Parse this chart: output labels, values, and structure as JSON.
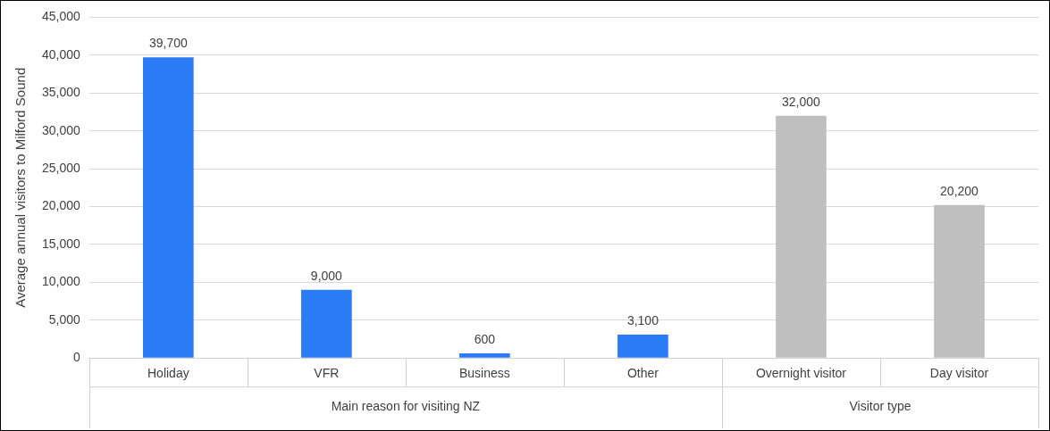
{
  "chart_data": {
    "type": "bar",
    "ylabel": "Average annual visitors to Milford Sound",
    "categories": [
      "Holiday",
      "VFR",
      "Business",
      "Other",
      "Overnight visitor",
      "Day visitor"
    ],
    "series": [
      {
        "color": "#2b7bf7",
        "values": [
          39700,
          9000,
          600,
          3100,
          null,
          null
        ],
        "value_labels": [
          "39,700",
          "9,000",
          "600",
          "3,100",
          null,
          null
        ]
      },
      {
        "color": "#bfbfbf",
        "values": [
          null,
          null,
          null,
          null,
          32000,
          20200
        ],
        "value_labels": [
          null,
          null,
          null,
          null,
          "32,000",
          "20,200"
        ]
      }
    ],
    "ylim": [
      0,
      45000
    ],
    "yticks": [
      0,
      {
        "value": 5000,
        "label": "5,000"
      },
      {
        "value": 10000,
        "label": "10,000"
      },
      {
        "value": 15000,
        "label": "15,000"
      },
      {
        "value": 20000,
        "label": "20,000"
      },
      {
        "value": 25000,
        "label": "25,000"
      },
      {
        "value": 30000,
        "label": "30,000"
      },
      {
        "value": 35000,
        "label": "35,000"
      },
      {
        "value": 40000,
        "label": "40,000"
      },
      {
        "value": 45000,
        "label": "45,000"
      }
    ],
    "grid": "y",
    "legend": false,
    "annotations": [
      "Main reason for visiting NZ",
      "Visitor type"
    ]
  }
}
